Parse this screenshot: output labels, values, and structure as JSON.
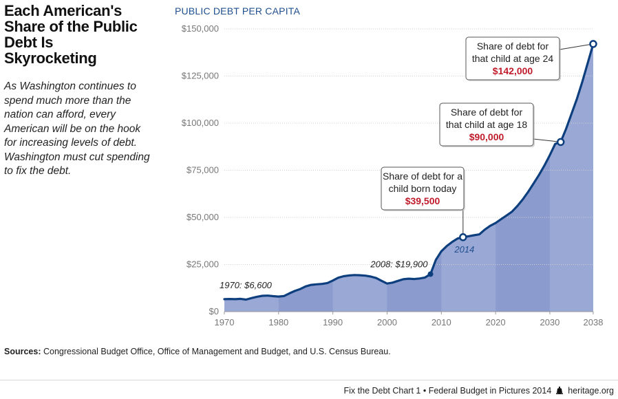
{
  "headline": "Each American's Share of the Public Debt Is Skyrocketing",
  "intro": "As Washington continues to spend much more than the nation can afford, every American will be on the hook for increasing levels of debt. Washington must cut spending to fix the debt.",
  "chart_data": {
    "type": "area",
    "title": "PUBLIC DEBT PER CAPITA",
    "xlabel": "",
    "ylabel": "",
    "x_ticks": [
      "1970",
      "1980",
      "1990",
      "2000",
      "2010",
      "2020",
      "2030",
      "2038"
    ],
    "y_ticks": [
      "$0",
      "$25,000",
      "$50,000",
      "$75,000",
      "$100,000",
      "$125,000",
      "$150,000"
    ],
    "xlim": [
      1970,
      2038
    ],
    "ylim": [
      0,
      150000
    ],
    "series": [
      {
        "x": [
          1970,
          1971,
          1972,
          1973,
          1974,
          1975,
          1976,
          1977,
          1978,
          1979,
          1980,
          1981,
          1982,
          1983,
          1984,
          1985,
          1986,
          1987,
          1988,
          1989,
          1990,
          1991,
          1992,
          1993,
          1994,
          1995,
          1996,
          1997,
          1998,
          1999,
          2000,
          2001,
          2002,
          2003,
          2004,
          2005,
          2006,
          2007,
          2008,
          2009,
          2010,
          2011,
          2012,
          2013,
          2014,
          2015,
          2016,
          2017,
          2018,
          2019,
          2020,
          2021,
          2022,
          2023,
          2024,
          2025,
          2026,
          2027,
          2028,
          2029,
          2030,
          2031,
          2032,
          2033,
          2034,
          2035,
          2036,
          2037,
          2038
        ],
        "y": [
          6600,
          6700,
          6600,
          6800,
          6400,
          7200,
          7900,
          8400,
          8500,
          8200,
          8000,
          8300,
          9700,
          11000,
          12000,
          13400,
          14200,
          14500,
          14700,
          15200,
          16500,
          18000,
          18800,
          19200,
          19400,
          19300,
          19100,
          18600,
          17800,
          16300,
          14900,
          15400,
          16300,
          17200,
          17500,
          17300,
          17600,
          18100,
          19900,
          27500,
          32000,
          34800,
          37000,
          38800,
          39500,
          40000,
          40500,
          41000,
          43500,
          45500,
          47000,
          49000,
          51000,
          53000,
          56000,
          59500,
          63500,
          68000,
          72500,
          77500,
          83000,
          89000,
          90000,
          97000,
          105000,
          113000,
          122000,
          132000,
          142000
        ]
      }
    ],
    "annotations": [
      {
        "text": "1970: $6,600",
        "x": 1970,
        "y": 6600
      },
      {
        "text": "2008: $19,900",
        "x": 2008,
        "y": 19900
      },
      {
        "text": "2014",
        "x": 2014,
        "y": 39500
      }
    ],
    "callouts": [
      {
        "line1": "Share of debt for a",
        "line2": "child born today",
        "value": "$39,500",
        "x": 2014,
        "y": 39500
      },
      {
        "line1": "Share of debt for",
        "line2": "that child at age 18",
        "value": "$90,000",
        "x": 2032,
        "y": 90000
      },
      {
        "line1": "Share of debt for",
        "line2": "that child at age 24",
        "value": "$142,000",
        "x": 2038,
        "y": 142000
      }
    ],
    "colors": {
      "line": "#0d3f7f",
      "fill": "#9aa8d6",
      "fill_band": "#8c9bcd",
      "value_text": "#c01b2b",
      "title": "#1f4f8f"
    }
  },
  "sources": {
    "label": "Sources:",
    "text": " Congressional Budget Office, Office of Management and Budget, and U.S. Census Bureau."
  },
  "footer": {
    "text": "Fix the Debt Chart 1 • Federal Budget in Pictures 2014",
    "brand": "heritage.org"
  }
}
